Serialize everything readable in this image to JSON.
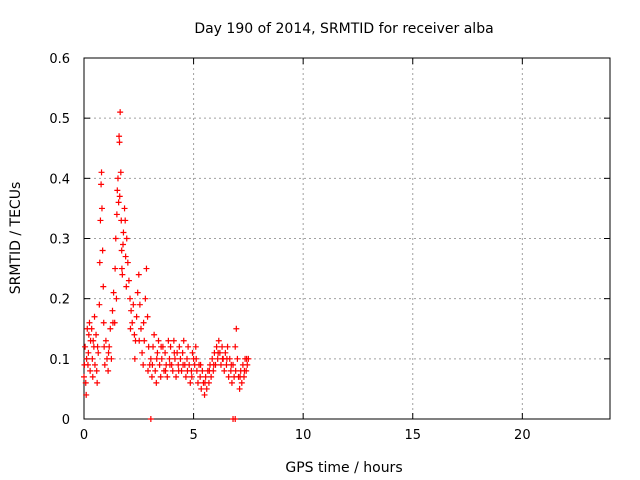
{
  "chart_data": {
    "type": "scatter",
    "title": "Day 190 of 2014, SRMTID for receiver alba",
    "xlabel": "GPS time / hours",
    "ylabel": "SRMTID / TECUs",
    "xlim": [
      0,
      24
    ],
    "ylim": [
      0,
      0.6
    ],
    "xticks": [
      0,
      5,
      10,
      15,
      20
    ],
    "xtick_labels": [
      "0",
      "5",
      "10",
      "15",
      "20"
    ],
    "yticks": [
      0,
      0.1,
      0.2,
      0.3,
      0.4,
      0.5,
      0.6
    ],
    "ytick_labels": [
      "0",
      "0.1",
      "0.2",
      "0.3",
      "0.4",
      "0.5",
      "0.6"
    ],
    "grid": true,
    "marker": "+",
    "series": [
      {
        "name": "SRMTID",
        "color": "#ff0000",
        "points": [
          [
            0.0,
            0.07
          ],
          [
            0.05,
            0.12
          ],
          [
            0.08,
            0.06
          ],
          [
            0.1,
            0.04
          ],
          [
            0.12,
            0.1
          ],
          [
            0.15,
            0.15
          ],
          [
            0.18,
            0.09
          ],
          [
            0.2,
            0.11
          ],
          [
            0.25,
            0.16
          ],
          [
            0.28,
            0.08
          ],
          [
            0.3,
            0.13
          ],
          [
            0.35,
            0.15
          ],
          [
            0.38,
            0.1
          ],
          [
            0.4,
            0.07
          ],
          [
            0.45,
            0.12
          ],
          [
            0.48,
            0.17
          ],
          [
            0.5,
            0.09
          ],
          [
            0.55,
            0.14
          ],
          [
            0.58,
            0.08
          ],
          [
            0.6,
            0.06
          ],
          [
            0.65,
            0.11
          ],
          [
            0.7,
            0.19
          ],
          [
            0.72,
            0.26
          ],
          [
            0.75,
            0.33
          ],
          [
            0.78,
            0.39
          ],
          [
            0.8,
            0.41
          ],
          [
            0.82,
            0.35
          ],
          [
            0.85,
            0.28
          ],
          [
            0.88,
            0.22
          ],
          [
            0.9,
            0.16
          ],
          [
            0.92,
            0.12
          ],
          [
            0.95,
            0.09
          ],
          [
            1.0,
            0.13
          ],
          [
            1.05,
            0.1
          ],
          [
            1.1,
            0.08
          ],
          [
            1.15,
            0.12
          ],
          [
            1.2,
            0.15
          ],
          [
            1.25,
            0.1
          ],
          [
            1.3,
            0.18
          ],
          [
            1.35,
            0.21
          ],
          [
            1.4,
            0.16
          ],
          [
            1.42,
            0.25
          ],
          [
            1.45,
            0.3
          ],
          [
            1.5,
            0.34
          ],
          [
            1.52,
            0.38
          ],
          [
            1.55,
            0.4
          ],
          [
            1.58,
            0.36
          ],
          [
            1.6,
            0.47
          ],
          [
            1.62,
            0.46
          ],
          [
            1.65,
            0.51
          ],
          [
            1.68,
            0.41
          ],
          [
            1.7,
            0.33
          ],
          [
            1.72,
            0.28
          ],
          [
            1.75,
            0.24
          ],
          [
            1.78,
            0.29
          ],
          [
            1.8,
            0.31
          ],
          [
            1.85,
            0.35
          ],
          [
            1.88,
            0.33
          ],
          [
            1.9,
            0.27
          ],
          [
            1.95,
            0.3
          ],
          [
            2.0,
            0.26
          ],
          [
            2.05,
            0.23
          ],
          [
            2.1,
            0.2
          ],
          [
            2.15,
            0.18
          ],
          [
            2.2,
            0.16
          ],
          [
            2.25,
            0.19
          ],
          [
            2.3,
            0.14
          ],
          [
            2.35,
            0.13
          ],
          [
            2.4,
            0.17
          ],
          [
            2.45,
            0.21
          ],
          [
            2.5,
            0.24
          ],
          [
            2.55,
            0.19
          ],
          [
            2.6,
            0.15
          ],
          [
            2.65,
            0.11
          ],
          [
            2.7,
            0.09
          ],
          [
            2.75,
            0.13
          ],
          [
            2.8,
            0.2
          ],
          [
            2.85,
            0.25
          ],
          [
            2.9,
            0.17
          ],
          [
            2.95,
            0.12
          ],
          [
            3.0,
            0.09
          ],
          [
            3.05,
            0.1
          ],
          [
            3.1,
            0.07
          ],
          [
            3.15,
            0.12
          ],
          [
            3.2,
            0.14
          ],
          [
            3.25,
            0.08
          ],
          [
            3.3,
            0.06
          ],
          [
            3.35,
            0.11
          ],
          [
            3.4,
            0.13
          ],
          [
            3.45,
            0.09
          ],
          [
            3.5,
            0.07
          ],
          [
            3.55,
            0.1
          ],
          [
            3.6,
            0.12
          ],
          [
            3.65,
            0.08
          ],
          [
            3.7,
            0.11
          ],
          [
            3.75,
            0.09
          ],
          [
            3.8,
            0.07
          ],
          [
            3.85,
            0.13
          ],
          [
            3.9,
            0.1
          ],
          [
            3.95,
            0.12
          ],
          [
            4.0,
            0.09
          ],
          [
            4.05,
            0.08
          ],
          [
            4.1,
            0.13
          ],
          [
            4.15,
            0.1
          ],
          [
            4.2,
            0.07
          ],
          [
            4.25,
            0.11
          ],
          [
            4.3,
            0.09
          ],
          [
            4.35,
            0.12
          ],
          [
            4.4,
            0.1
          ],
          [
            4.45,
            0.08
          ],
          [
            4.5,
            0.11
          ],
          [
            4.55,
            0.13
          ],
          [
            4.6,
            0.09
          ],
          [
            4.65,
            0.07
          ],
          [
            4.7,
            0.1
          ],
          [
            4.75,
            0.12
          ],
          [
            4.8,
            0.09
          ],
          [
            4.85,
            0.06
          ],
          [
            4.9,
            0.08
          ],
          [
            4.95,
            0.11
          ],
          [
            5.0,
            0.1
          ],
          [
            5.05,
            0.09
          ],
          [
            5.1,
            0.12
          ],
          [
            5.15,
            0.08
          ],
          [
            5.2,
            0.06
          ],
          [
            5.25,
            0.09
          ],
          [
            5.3,
            0.07
          ],
          [
            5.35,
            0.05
          ],
          [
            5.4,
            0.08
          ],
          [
            5.45,
            0.06
          ],
          [
            5.5,
            0.04
          ],
          [
            5.55,
            0.07
          ],
          [
            5.6,
            0.05
          ],
          [
            5.65,
            0.08
          ],
          [
            5.7,
            0.06
          ],
          [
            5.75,
            0.09
          ],
          [
            5.8,
            0.07
          ],
          [
            5.85,
            0.1
          ],
          [
            5.9,
            0.08
          ],
          [
            5.95,
            0.11
          ],
          [
            6.0,
            0.09
          ],
          [
            6.05,
            0.12
          ],
          [
            6.1,
            0.1
          ],
          [
            6.15,
            0.13
          ],
          [
            6.2,
            0.11
          ],
          [
            6.25,
            0.09
          ],
          [
            6.3,
            0.12
          ],
          [
            6.35,
            0.1
          ],
          [
            6.4,
            0.08
          ],
          [
            6.45,
            0.11
          ],
          [
            6.5,
            0.09
          ],
          [
            6.55,
            0.12
          ],
          [
            6.6,
            0.07
          ],
          [
            6.65,
            0.1
          ],
          [
            6.7,
            0.08
          ],
          [
            6.75,
            0.06
          ],
          [
            6.8,
            0.09
          ],
          [
            6.85,
            0.07
          ],
          [
            6.9,
            0.12
          ],
          [
            6.95,
            0.15
          ],
          [
            7.0,
            0.1
          ],
          [
            7.05,
            0.07
          ],
          [
            7.1,
            0.05
          ],
          [
            7.15,
            0.08
          ],
          [
            7.2,
            0.06
          ],
          [
            7.25,
            0.09
          ],
          [
            7.3,
            0.07
          ],
          [
            7.35,
            0.1
          ],
          [
            7.4,
            0.08
          ],
          [
            7.45,
            0.09
          ],
          [
            7.5,
            0.1
          ],
          [
            0.02,
            0.09
          ],
          [
            0.22,
            0.14
          ],
          [
            0.42,
            0.13
          ],
          [
            0.62,
            0.12
          ],
          [
            1.12,
            0.11
          ],
          [
            1.32,
            0.16
          ],
          [
            1.48,
            0.2
          ],
          [
            1.63,
            0.37
          ],
          [
            1.73,
            0.25
          ],
          [
            1.93,
            0.22
          ],
          [
            2.12,
            0.15
          ],
          [
            2.32,
            0.1
          ],
          [
            2.52,
            0.13
          ],
          [
            2.72,
            0.16
          ],
          [
            2.92,
            0.08
          ],
          [
            3.12,
            0.09
          ],
          [
            3.32,
            0.1
          ],
          [
            3.52,
            0.12
          ],
          [
            3.72,
            0.08
          ],
          [
            3.92,
            0.09
          ],
          [
            4.12,
            0.11
          ],
          [
            4.32,
            0.08
          ],
          [
            4.52,
            0.09
          ],
          [
            4.72,
            0.08
          ],
          [
            4.92,
            0.07
          ],
          [
            5.12,
            0.1
          ],
          [
            5.32,
            0.09
          ],
          [
            5.52,
            0.06
          ],
          [
            5.72,
            0.08
          ],
          [
            5.92,
            0.09
          ],
          [
            6.12,
            0.11
          ],
          [
            6.32,
            0.1
          ],
          [
            6.52,
            0.1
          ],
          [
            6.72,
            0.09
          ],
          [
            6.92,
            0.08
          ],
          [
            7.12,
            0.07
          ],
          [
            7.32,
            0.08
          ],
          [
            7.42,
            0.1
          ],
          [
            3.05,
            0.0
          ],
          [
            6.8,
            0.0
          ],
          [
            6.9,
            0.0
          ]
        ]
      }
    ]
  }
}
